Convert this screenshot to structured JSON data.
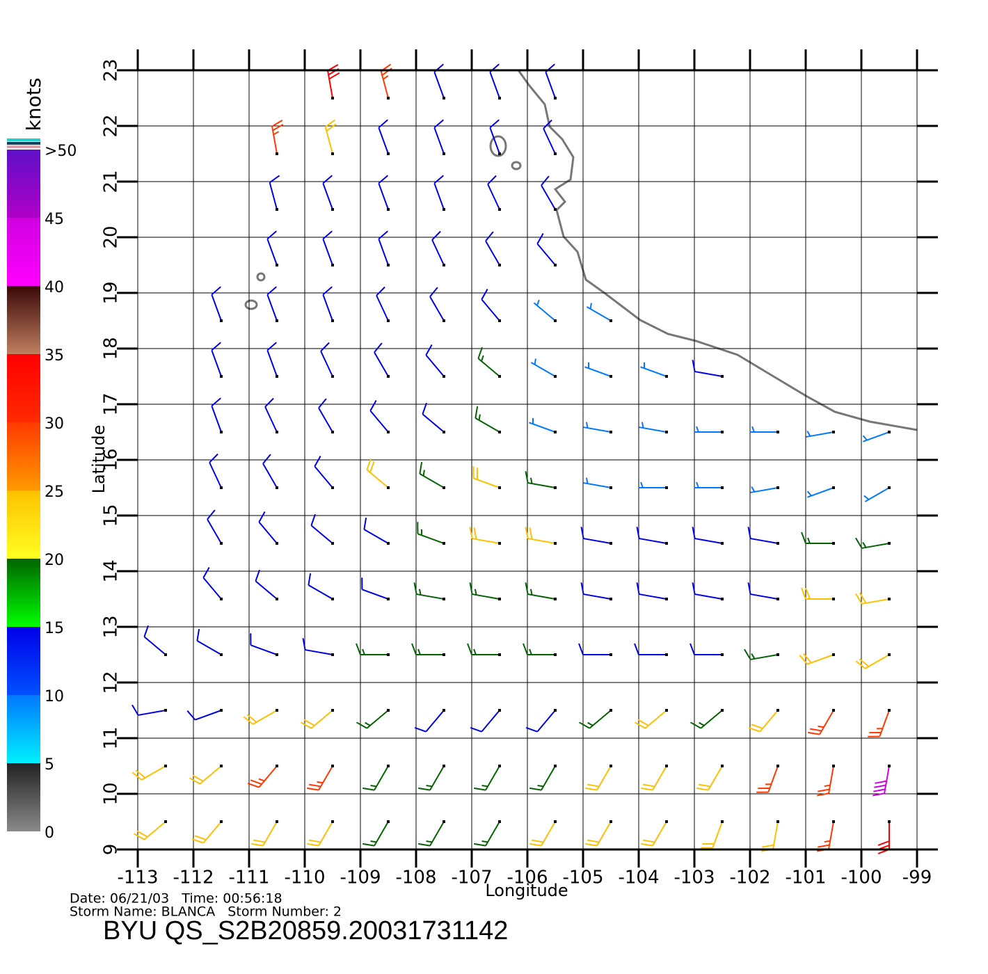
{
  "chart_data": {
    "type": "wind_barbs",
    "title": "BYU QS_S2B20859.20031731142",
    "info": [
      "Date: 06/21/03   Time: 00:56:18",
      "Storm Name: BLANCA   Storm Number: 2"
    ],
    "xlabel": "Longitude",
    "ylabel": "Latitude",
    "xlim": [
      -113,
      -99
    ],
    "ylim": [
      9,
      23
    ],
    "xticks": [
      -113,
      -112,
      -111,
      -110,
      -109,
      -108,
      -107,
      -106,
      -105,
      -104,
      -103,
      -102,
      -101,
      -100,
      -99
    ],
    "yticks": [
      9,
      10,
      11,
      12,
      13,
      14,
      15,
      16,
      17,
      18,
      19,
      20,
      21,
      22,
      23
    ],
    "grid": true,
    "colorbar": {
      "label": "knots",
      "lim": [
        0,
        50
      ],
      "ticks": [
        0,
        5,
        10,
        15,
        20,
        25,
        30,
        35,
        40,
        45,
        {
          "value": 50,
          "label": ">50"
        }
      ],
      "colors": [
        [
          "#8a8a8a",
          "#222222"
        ],
        [
          "#00f0ff",
          "#0078ff"
        ],
        [
          "#0050ff",
          "#0000e8"
        ],
        [
          "#00ff00",
          "#006400"
        ],
        [
          "#ffff20",
          "#ffc000"
        ],
        [
          "#ff9a00",
          "#ff3a00"
        ],
        [
          "#ff2a00",
          "#ff0000"
        ],
        [
          "#c08060",
          "#3a0808"
        ],
        [
          "#ff00ff",
          "#d000e0"
        ],
        [
          "#b000c8",
          "#6010c8"
        ]
      ]
    },
    "wind": {
      "lat": [
        22.5,
        21.5,
        20.5,
        19.5,
        18.5,
        17.5,
        16.5,
        15.5,
        14.5,
        13.5,
        12.5,
        11.5,
        10.5,
        9.5
      ],
      "lon": [
        -112.5,
        -111.5,
        -110.5,
        -109.5,
        -108.5,
        -107.5,
        -106.5,
        -105.5,
        -104.5,
        -103.5,
        -102.5,
        -101.5,
        -100.5,
        -99.5
      ],
      "speed": [
        [
          null,
          null,
          null,
          30,
          28,
          14,
          12,
          11,
          null,
          null,
          null,
          null,
          null,
          null
        ],
        [
          null,
          null,
          28,
          20,
          13,
          12,
          11,
          10,
          null,
          null,
          null,
          null,
          null,
          null
        ],
        [
          null,
          null,
          14,
          12,
          12,
          11,
          11,
          10,
          null,
          null,
          null,
          null,
          null,
          null
        ],
        [
          null,
          null,
          12,
          12,
          12,
          11,
          11,
          10,
          null,
          null,
          null,
          null,
          null,
          null
        ],
        [
          null,
          12,
          12,
          12,
          12,
          11,
          12,
          9,
          8,
          null,
          null,
          null,
          null,
          null
        ],
        [
          null,
          13,
          12,
          12,
          12,
          13,
          18,
          8,
          7,
          8,
          10,
          null,
          null,
          null
        ],
        [
          null,
          13,
          12,
          12,
          13,
          14,
          17,
          8,
          7,
          8,
          8,
          8,
          7,
          5
        ],
        [
          null,
          12,
          12,
          12,
          20,
          19,
          22,
          18,
          9,
          8,
          7,
          7,
          6,
          5
        ],
        [
          null,
          12,
          12,
          12,
          14,
          18,
          22,
          20,
          12,
          11,
          10,
          12,
          17,
          18
        ],
        [
          null,
          12,
          12,
          13,
          14,
          16,
          17,
          16,
          14,
          13,
          12,
          13,
          22,
          24
        ],
        [
          12,
          12,
          12,
          13,
          15,
          15,
          16,
          16,
          14,
          13,
          12,
          15,
          22,
          22
        ],
        [
          13,
          14,
          24,
          22,
          18,
          14,
          13,
          14,
          15,
          22,
          18,
          24,
          26,
          28
        ],
        [
          22,
          24,
          28,
          27,
          17,
          16,
          16,
          18,
          22,
          24,
          22,
          25,
          28,
          40
        ],
        [
          20,
          22,
          24,
          20,
          18,
          18,
          18,
          22,
          24,
          22,
          20,
          24,
          28,
          30
        ]
      ],
      "direction": [
        [
          null,
          null,
          null,
          350,
          345,
          340,
          340,
          340,
          null,
          null,
          null,
          null,
          null,
          null
        ],
        [
          null,
          null,
          350,
          345,
          340,
          340,
          340,
          335,
          null,
          null,
          null,
          null,
          null,
          null
        ],
        [
          null,
          null,
          345,
          340,
          340,
          340,
          335,
          330,
          null,
          null,
          null,
          null,
          null,
          null
        ],
        [
          null,
          null,
          340,
          340,
          340,
          335,
          330,
          320,
          null,
          null,
          null,
          null,
          null,
          null
        ],
        [
          null,
          340,
          340,
          340,
          335,
          330,
          320,
          310,
          300,
          null,
          null,
          null,
          null,
          null
        ],
        [
          null,
          340,
          340,
          335,
          330,
          320,
          310,
          300,
          290,
          290,
          280,
          null,
          null,
          null
        ],
        [
          null,
          340,
          335,
          330,
          320,
          310,
          300,
          290,
          280,
          280,
          270,
          270,
          260,
          250
        ],
        [
          null,
          335,
          330,
          320,
          310,
          300,
          290,
          280,
          280,
          270,
          270,
          260,
          250,
          240
        ],
        [
          null,
          330,
          320,
          310,
          300,
          290,
          280,
          280,
          280,
          280,
          280,
          280,
          270,
          260
        ],
        [
          null,
          320,
          310,
          300,
          290,
          280,
          280,
          280,
          280,
          280,
          280,
          280,
          270,
          260
        ],
        [
          310,
          300,
          290,
          280,
          270,
          270,
          270,
          270,
          270,
          270,
          270,
          260,
          250,
          240
        ],
        [
          260,
          250,
          240,
          230,
          230,
          220,
          220,
          220,
          230,
          230,
          230,
          220,
          210,
          200
        ],
        [
          240,
          230,
          220,
          210,
          210,
          210,
          210,
          210,
          210,
          210,
          210,
          200,
          190,
          190
        ],
        [
          230,
          220,
          210,
          210,
          210,
          210,
          210,
          210,
          210,
          210,
          200,
          190,
          190,
          180
        ]
      ]
    }
  }
}
